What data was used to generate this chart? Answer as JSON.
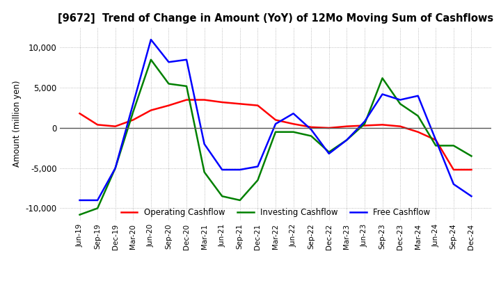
{
  "title": "[9672]  Trend of Change in Amount (YoY) of 12Mo Moving Sum of Cashflows",
  "ylabel": "Amount (million yen)",
  "ylim": [
    -11500,
    12500
  ],
  "yticks": [
    -10000,
    -5000,
    0,
    5000,
    10000
  ],
  "x_labels": [
    "Jun-19",
    "Sep-19",
    "Dec-19",
    "Mar-20",
    "Jun-20",
    "Sep-20",
    "Dec-20",
    "Mar-21",
    "Jun-21",
    "Sep-21",
    "Dec-21",
    "Mar-22",
    "Jun-22",
    "Sep-22",
    "Dec-22",
    "Mar-23",
    "Jun-23",
    "Sep-23",
    "Dec-23",
    "Mar-24",
    "Jun-24",
    "Sep-24",
    "Dec-24"
  ],
  "operating": [
    1800,
    400,
    200,
    1000,
    2200,
    2800,
    3500,
    3500,
    3200,
    3000,
    2800,
    1000,
    500,
    100,
    0,
    200,
    300,
    400,
    200,
    -500,
    -1500,
    -5200,
    -5200
  ],
  "investing": [
    -10800,
    -10000,
    -5000,
    2000,
    8500,
    5500,
    5200,
    -5500,
    -8500,
    -9000,
    -6500,
    -500,
    -500,
    -1000,
    -3000,
    -1500,
    500,
    6200,
    3000,
    1500,
    -2200,
    -2200,
    -3500
  ],
  "free": [
    -9000,
    -9000,
    -5000,
    3000,
    11000,
    8200,
    8500,
    -2000,
    -5200,
    -5200,
    -4800,
    500,
    1800,
    -200,
    -3200,
    -1500,
    800,
    4200,
    3500,
    4000,
    -1500,
    -7000,
    -8500
  ],
  "operating_color": "#ff0000",
  "investing_color": "#008000",
  "free_color": "#0000ff",
  "grid_color": "#aaaaaa",
  "background_color": "#ffffff",
  "zero_line_color": "#555555"
}
